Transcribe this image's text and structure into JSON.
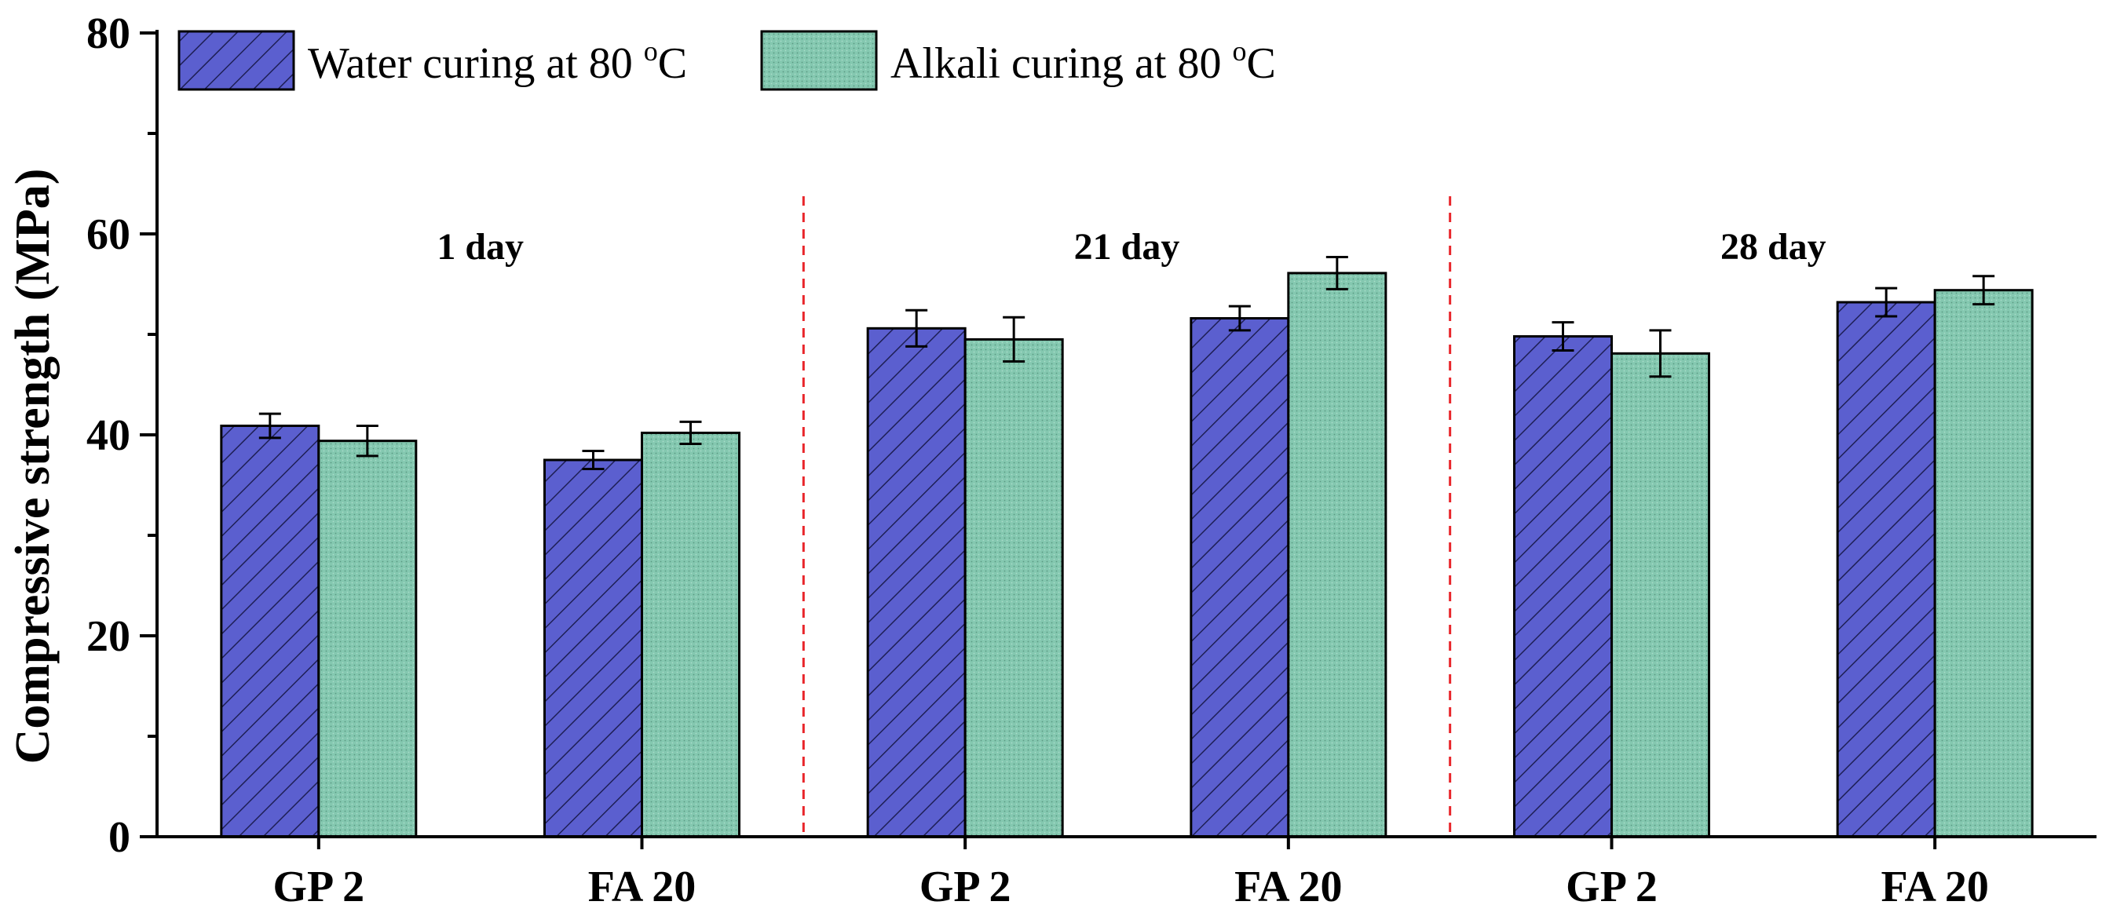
{
  "chart_data": {
    "type": "bar",
    "title": "",
    "xlabel": "",
    "ylabel": "Compressive strength (MPa)",
    "ylim": [
      0,
      80
    ],
    "yticks": [
      0,
      20,
      40,
      60,
      80
    ],
    "groups": [
      {
        "label": "1 day",
        "categories": [
          "GP 2",
          "FA 20"
        ]
      },
      {
        "label": "21 day",
        "categories": [
          "GP 2",
          "FA 20"
        ]
      },
      {
        "label": "28 day",
        "categories": [
          "GP 2",
          "FA 20"
        ]
      }
    ],
    "categories": [
      "GP 2",
      "FA 20",
      "GP 2",
      "FA 20",
      "GP 2",
      "FA 20"
    ],
    "series": [
      {
        "name": "Water curing at 80 °C",
        "legend_main": "Water curing at 80 ",
        "legend_sup": "o",
        "legend_unit": "C",
        "color": "#5b5fcf",
        "pattern": "diagonal-hatch",
        "values": [
          40.9,
          37.5,
          50.6,
          51.6,
          49.8,
          53.2
        ],
        "errors": [
          1.2,
          0.9,
          1.8,
          1.2,
          1.4,
          1.4
        ]
      },
      {
        "name": "Alkali curing at 80 °C",
        "legend_main": "Alkali curing at 80 ",
        "legend_sup": "o",
        "legend_unit": "C",
        "color": "#84c8b0",
        "pattern": "dotted",
        "values": [
          39.4,
          40.2,
          49.5,
          56.1,
          48.1,
          54.4
        ],
        "errors": [
          1.5,
          1.1,
          2.2,
          1.6,
          2.3,
          1.4
        ]
      }
    ],
    "separators": "dashed red vertical lines between day groups",
    "legend_position": "top-left"
  }
}
